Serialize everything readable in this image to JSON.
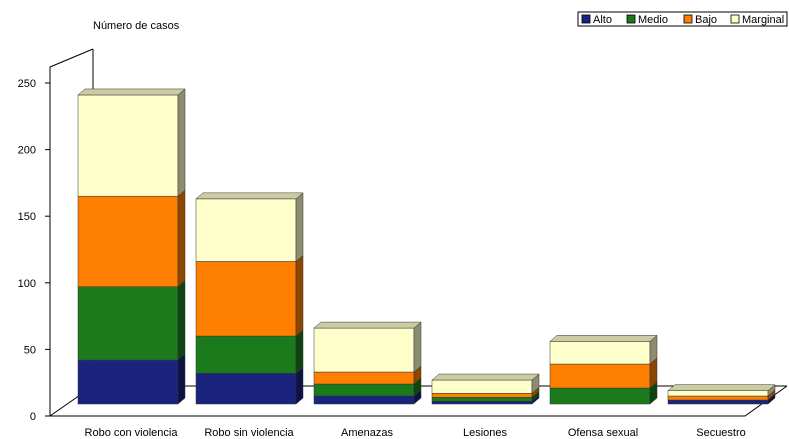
{
  "chart_data": {
    "type": "bar",
    "stacked": true,
    "three_d": true,
    "ylabel": "Número de casos",
    "ylim": [
      0,
      250
    ],
    "yticks": [
      0,
      50,
      100,
      150,
      200,
      250
    ],
    "categories": [
      "Robo con violencia",
      "Robo sin violencia",
      "Amenazas",
      "Lesiones",
      "Ofensa sexual",
      "Secuestro"
    ],
    "series": [
      {
        "name": "Alto",
        "color": "#1a237e",
        "values": [
          33,
          23,
          6,
          2,
          0,
          3
        ]
      },
      {
        "name": "Medio",
        "color": "#1b7a1b",
        "values": [
          55,
          28,
          9,
          3,
          12,
          0
        ]
      },
      {
        "name": "Bajo",
        "color": "#ff8000",
        "values": [
          68,
          56,
          9,
          3,
          18,
          3
        ]
      },
      {
        "name": "Marginal",
        "color": "#ffffcc",
        "values": [
          76,
          47,
          33,
          10,
          17,
          4
        ]
      }
    ],
    "legend": {
      "position": "top-right",
      "labels": [
        "Alto",
        "Medio",
        "Bajo",
        "Marginal"
      ]
    },
    "grid": false
  }
}
